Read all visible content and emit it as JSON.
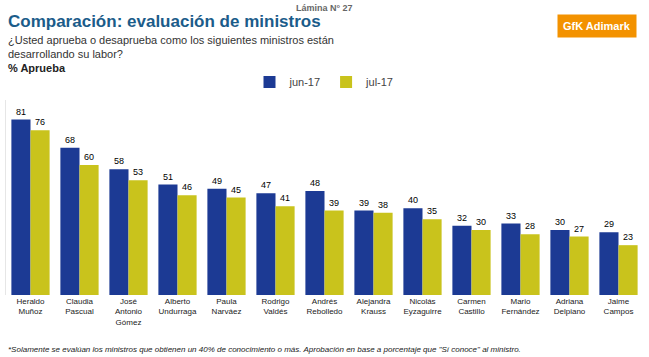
{
  "chart_data": {
    "type": "bar",
    "header": "Lámina N° 27",
    "title": "Comparación: evaluación de ministros",
    "subtitle": "¿Usted aprueba o desaprueba como los siguientes ministros están\ndesarrollando su labor?",
    "ylabel": "% Aprueba",
    "logo": "GfK Adimark",
    "footnote": "*Solamente se evalúan los ministros que obtienen un 40% de conocimiento o más. Aprobación en base a porcentaje que \"Sí conoce\" al ministro.",
    "categories": [
      "Heraldo Muñoz",
      "Claudia Pascual",
      "José Antonio Gómez",
      "Alberto Undurraga",
      "Paula Narváez",
      "Rodrigo Valdés",
      "Andrés Rebolledo",
      "Alejandra Krauss",
      "Nicolás Eyzaguirre",
      "Carmen Castillo",
      "Mario Fernández",
      "Adriana Delpiano",
      "Jaime Campos"
    ],
    "series": [
      {
        "name": "jun-17",
        "color": "#1c3a94",
        "values": [
          81,
          68,
          58,
          51,
          49,
          47,
          48,
          39,
          40,
          32,
          33,
          30,
          29
        ]
      },
      {
        "name": "jul-17",
        "color": "#c9c31c",
        "values": [
          76,
          60,
          53,
          46,
          45,
          41,
          39,
          38,
          35,
          30,
          28,
          27,
          23
        ]
      }
    ],
    "ylim": [
      0,
      90
    ],
    "yticks": [],
    "grid": false,
    "legend": "top",
    "data_labels": true,
    "tick_labels": "x"
  }
}
